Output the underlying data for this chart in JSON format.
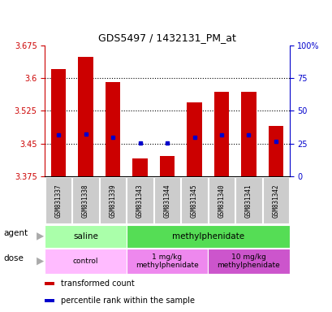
{
  "title": "GDS5497 / 1432131_PM_at",
  "samples": [
    "GSM831337",
    "GSM831338",
    "GSM831339",
    "GSM831343",
    "GSM831344",
    "GSM831345",
    "GSM831340",
    "GSM831341",
    "GSM831342"
  ],
  "bar_values": [
    3.62,
    3.648,
    3.59,
    3.415,
    3.422,
    3.545,
    3.568,
    3.568,
    3.49
  ],
  "bar_bottom": 3.375,
  "blue_marker_values": [
    3.47,
    3.472,
    3.465,
    3.452,
    3.452,
    3.465,
    3.47,
    3.47,
    3.455
  ],
  "ylim": [
    3.375,
    3.675
  ],
  "yticks_left": [
    3.375,
    3.45,
    3.525,
    3.6,
    3.675
  ],
  "yticks_right_labels": [
    "0",
    "25",
    "50",
    "75",
    "100%"
  ],
  "yticks_right_vals": [
    0,
    25,
    50,
    75,
    100
  ],
  "bar_color": "#cc0000",
  "blue_color": "#0000cc",
  "left_tick_color": "#cc0000",
  "right_tick_color": "#0000cc",
  "agent_groups": [
    {
      "label": "saline",
      "start": 0,
      "end": 3,
      "color": "#aaffaa"
    },
    {
      "label": "methylphenidate",
      "start": 3,
      "end": 9,
      "color": "#55dd55"
    }
  ],
  "dose_groups": [
    {
      "label": "control",
      "start": 0,
      "end": 3,
      "color": "#ffbbff"
    },
    {
      "label": "1 mg/kg\nmethylphenidate",
      "start": 3,
      "end": 6,
      "color": "#ee88ee"
    },
    {
      "label": "10 mg/kg\nmethylphenidate",
      "start": 6,
      "end": 9,
      "color": "#cc55cc"
    }
  ],
  "legend_items": [
    {
      "color": "#cc0000",
      "label": "transformed count"
    },
    {
      "color": "#0000cc",
      "label": "percentile rank within the sample"
    }
  ]
}
